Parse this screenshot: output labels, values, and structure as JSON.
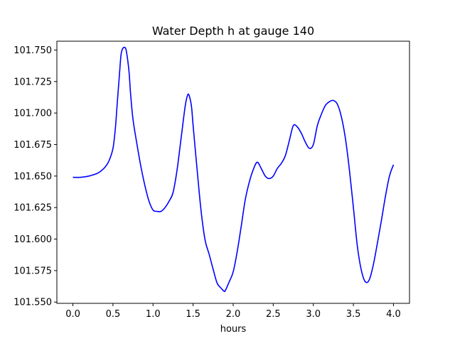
{
  "chart_data": {
    "type": "line",
    "title": "Water Depth h at gauge 140",
    "xlabel": "hours",
    "ylabel": "",
    "xlim": [
      -0.2,
      4.2
    ],
    "ylim": [
      101.549,
      101.757
    ],
    "xticks": [
      0.0,
      0.5,
      1.0,
      1.5,
      2.0,
      2.5,
      3.0,
      3.5,
      4.0
    ],
    "xtick_labels": [
      "0.0",
      "0.5",
      "1.0",
      "1.5",
      "2.0",
      "2.5",
      "3.0",
      "3.5",
      "4.0"
    ],
    "yticks": [
      101.55,
      101.575,
      101.6,
      101.625,
      101.65,
      101.675,
      101.7,
      101.725,
      101.75
    ],
    "ytick_labels": [
      "101.550",
      "101.575",
      "101.600",
      "101.625",
      "101.650",
      "101.675",
      "101.700",
      "101.725",
      "101.750"
    ],
    "grid": false,
    "legend": "none",
    "series": [
      {
        "color": "#0000ff",
        "x": [
          0.0,
          0.1,
          0.2,
          0.3,
          0.35,
          0.4,
          0.45,
          0.5,
          0.53,
          0.55,
          0.58,
          0.6,
          0.62,
          0.65,
          0.67,
          0.7,
          0.72,
          0.75,
          0.8,
          0.85,
          0.9,
          0.95,
          1.0,
          1.05,
          1.1,
          1.15,
          1.2,
          1.25,
          1.3,
          1.35,
          1.4,
          1.43,
          1.45,
          1.48,
          1.5,
          1.55,
          1.6,
          1.65,
          1.7,
          1.75,
          1.8,
          1.85,
          1.88,
          1.9,
          1.95,
          2.0,
          2.05,
          2.1,
          2.15,
          2.2,
          2.25,
          2.3,
          2.35,
          2.4,
          2.45,
          2.5,
          2.55,
          2.6,
          2.65,
          2.7,
          2.75,
          2.8,
          2.85,
          2.9,
          2.95,
          3.0,
          3.05,
          3.1,
          3.15,
          3.2,
          3.25,
          3.3,
          3.35,
          3.4,
          3.45,
          3.5,
          3.55,
          3.6,
          3.65,
          3.7,
          3.75,
          3.8,
          3.85,
          3.9,
          3.95,
          4.0
        ],
        "values": [
          101.649,
          101.649,
          101.65,
          101.652,
          101.654,
          101.657,
          101.662,
          101.672,
          101.688,
          101.705,
          101.73,
          101.746,
          101.751,
          101.752,
          101.748,
          101.733,
          101.715,
          101.695,
          101.675,
          101.657,
          101.642,
          101.63,
          101.623,
          101.622,
          101.622,
          101.625,
          101.63,
          101.637,
          101.655,
          101.68,
          101.705,
          101.714,
          101.714,
          101.705,
          101.69,
          101.655,
          101.622,
          101.599,
          101.588,
          101.576,
          101.565,
          101.561,
          101.559,
          101.559,
          101.566,
          101.574,
          101.59,
          101.61,
          101.631,
          101.645,
          101.655,
          101.661,
          101.656,
          101.65,
          101.648,
          101.65,
          101.656,
          101.66,
          101.666,
          101.678,
          101.69,
          101.689,
          101.684,
          101.677,
          101.672,
          101.675,
          101.69,
          101.699,
          101.706,
          101.709,
          101.71,
          101.707,
          101.697,
          101.68,
          101.655,
          101.625,
          101.594,
          101.575,
          101.566,
          101.568,
          101.58,
          101.597,
          101.615,
          101.634,
          101.65,
          101.659
        ]
      }
    ]
  }
}
